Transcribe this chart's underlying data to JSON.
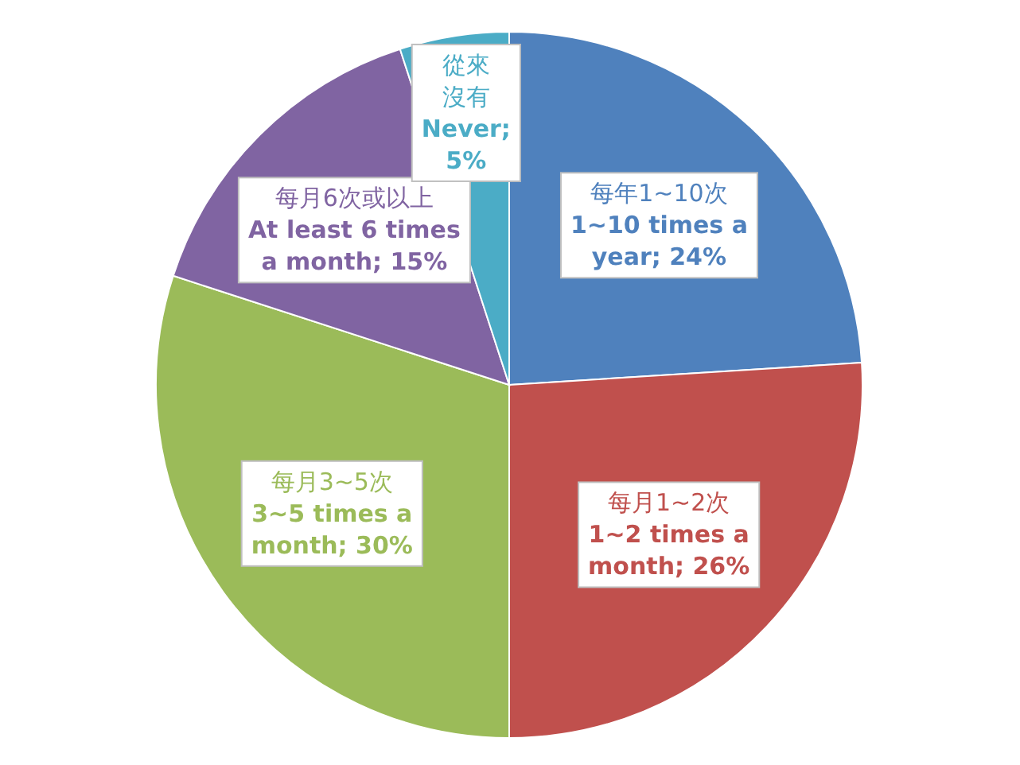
{
  "chart_data": {
    "type": "pie",
    "categories": [
      "每年1~10次",
      "每月1~2次",
      "每月3~5次",
      "每月6次或以上",
      "從來沒有"
    ],
    "values": [
      24,
      26,
      30,
      15,
      5
    ],
    "colors": [
      "#4f81bd",
      "#c0504d",
      "#9bbb59",
      "#8064a2",
      "#4bacc6"
    ],
    "value_labels": [
      "1~10 times a year; 24%",
      "1~2 times a month; 26%",
      "3~5 times a month; 30%",
      "At least 6 times a month; 15%",
      "Never; 5%"
    ]
  }
}
